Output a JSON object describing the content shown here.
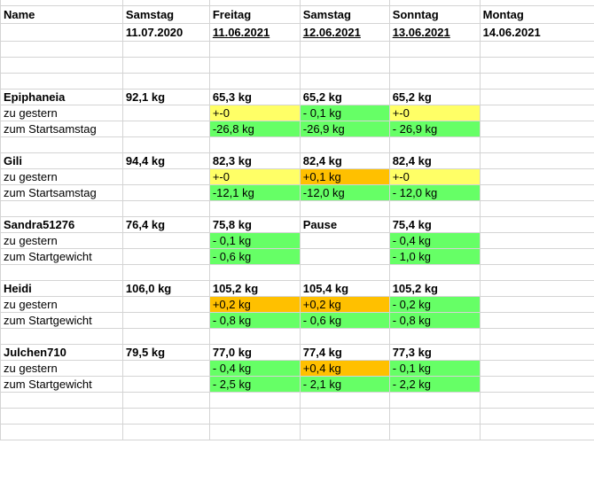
{
  "colors": {
    "yellow": "#ffff66",
    "orange": "#ffc000",
    "green": "#66ff66",
    "gridline": "#d4d4d4"
  },
  "rows": [
    {
      "top": true,
      "cells": [
        {
          "text": ""
        },
        {
          "text": ""
        },
        {
          "text": ""
        },
        {
          "text": ""
        },
        {
          "text": ""
        },
        {
          "text": ""
        }
      ]
    },
    {
      "cells": [
        {
          "text": "Name",
          "bold": true
        },
        {
          "text": "Samstag",
          "bold": true
        },
        {
          "text": "Freitag",
          "bold": true
        },
        {
          "text": "Samstag",
          "bold": true
        },
        {
          "text": "Sonntag",
          "bold": true
        },
        {
          "text": "Montag",
          "bold": true
        }
      ]
    },
    {
      "cells": [
        {
          "text": ""
        },
        {
          "text": "11.07.2020",
          "bold": true
        },
        {
          "text": "11.06.2021",
          "bold": true,
          "underline": true
        },
        {
          "text": "12.06.2021",
          "bold": true,
          "underline": true
        },
        {
          "text": "13.06.2021",
          "bold": true,
          "underline": true
        },
        {
          "text": "14.06.2021",
          "bold": true
        }
      ]
    },
    {
      "cells": [
        {
          "text": ""
        },
        {
          "text": ""
        },
        {
          "text": ""
        },
        {
          "text": ""
        },
        {
          "text": ""
        },
        {
          "text": ""
        }
      ]
    },
    {
      "cells": [
        {
          "text": ""
        },
        {
          "text": ""
        },
        {
          "text": ""
        },
        {
          "text": ""
        },
        {
          "text": ""
        },
        {
          "text": ""
        }
      ]
    },
    {
      "cells": [
        {
          "text": ""
        },
        {
          "text": ""
        },
        {
          "text": ""
        },
        {
          "text": ""
        },
        {
          "text": ""
        },
        {
          "text": ""
        }
      ]
    },
    {
      "cells": [
        {
          "text": "Epiphaneia",
          "bold": true
        },
        {
          "text": "92,1 kg",
          "bold": true
        },
        {
          "text": "65,3 kg",
          "bold": true
        },
        {
          "text": "65,2 kg",
          "bold": true
        },
        {
          "text": "65,2 kg",
          "bold": true
        },
        {
          "text": ""
        }
      ]
    },
    {
      "cells": [
        {
          "text": "zu gestern"
        },
        {
          "text": ""
        },
        {
          "text": "+-0",
          "bg": "yellow"
        },
        {
          "text": "- 0,1 kg",
          "bg": "green"
        },
        {
          "text": "+-0",
          "bg": "yellow"
        },
        {
          "text": ""
        }
      ]
    },
    {
      "cells": [
        {
          "text": "zum Startsamstag"
        },
        {
          "text": ""
        },
        {
          "text": "-26,8 kg",
          "bg": "green"
        },
        {
          "text": "-26,9 kg",
          "bg": "green"
        },
        {
          "text": "- 26,9 kg",
          "bg": "green"
        },
        {
          "text": ""
        }
      ]
    },
    {
      "cells": [
        {
          "text": ""
        },
        {
          "text": ""
        },
        {
          "text": ""
        },
        {
          "text": ""
        },
        {
          "text": ""
        },
        {
          "text": ""
        }
      ]
    },
    {
      "cells": [
        {
          "text": "Gili",
          "bold": true
        },
        {
          "text": "94,4 kg",
          "bold": true
        },
        {
          "text": "82,3 kg",
          "bold": true
        },
        {
          "text": "82,4 kg",
          "bold": true
        },
        {
          "text": "82,4 kg",
          "bold": true
        },
        {
          "text": ""
        }
      ]
    },
    {
      "cells": [
        {
          "text": "zu gestern"
        },
        {
          "text": ""
        },
        {
          "text": "+-0",
          "bg": "yellow"
        },
        {
          "text": "+0,1 kg",
          "bg": "orange"
        },
        {
          "text": "+-0",
          "bg": "yellow"
        },
        {
          "text": ""
        }
      ]
    },
    {
      "cells": [
        {
          "text": "zum Startsamstag"
        },
        {
          "text": ""
        },
        {
          "text": "-12,1 kg",
          "bg": "green"
        },
        {
          "text": "-12,0 kg",
          "bg": "green"
        },
        {
          "text": "- 12,0 kg",
          "bg": "green"
        },
        {
          "text": ""
        }
      ]
    },
    {
      "cells": [
        {
          "text": ""
        },
        {
          "text": ""
        },
        {
          "text": ""
        },
        {
          "text": ""
        },
        {
          "text": ""
        },
        {
          "text": ""
        }
      ]
    },
    {
      "cells": [
        {
          "text": "Sandra51276",
          "bold": true
        },
        {
          "text": "76,4 kg",
          "bold": true
        },
        {
          "text": "75,8 kg",
          "bold": true
        },
        {
          "text": "Pause",
          "bold": true
        },
        {
          "text": "75,4 kg",
          "bold": true
        },
        {
          "text": ""
        }
      ]
    },
    {
      "cells": [
        {
          "text": "zu gestern"
        },
        {
          "text": ""
        },
        {
          "text": "- 0,1 kg",
          "bg": "green"
        },
        {
          "text": ""
        },
        {
          "text": "- 0,4 kg",
          "bg": "green"
        },
        {
          "text": ""
        }
      ]
    },
    {
      "cells": [
        {
          "text": "zum Startgewicht"
        },
        {
          "text": ""
        },
        {
          "text": "- 0,6 kg",
          "bg": "green"
        },
        {
          "text": ""
        },
        {
          "text": "- 1,0 kg",
          "bg": "green"
        },
        {
          "text": ""
        }
      ]
    },
    {
      "cells": [
        {
          "text": ""
        },
        {
          "text": ""
        },
        {
          "text": ""
        },
        {
          "text": ""
        },
        {
          "text": ""
        },
        {
          "text": ""
        }
      ]
    },
    {
      "cells": [
        {
          "text": "Heidi",
          "bold": true
        },
        {
          "text": "106,0 kg",
          "bold": true
        },
        {
          "text": "105,2  kg",
          "bold": true
        },
        {
          "text": "105,4 kg",
          "bold": true
        },
        {
          "text": "105,2 kg",
          "bold": true
        },
        {
          "text": ""
        }
      ]
    },
    {
      "cells": [
        {
          "text": "zu gestern"
        },
        {
          "text": ""
        },
        {
          "text": "+0,2 kg",
          "bg": "orange"
        },
        {
          "text": "+0,2 kg",
          "bg": "orange"
        },
        {
          "text": "  - 0,2 kg",
          "bg": "green"
        },
        {
          "text": ""
        }
      ]
    },
    {
      "cells": [
        {
          "text": "zum Startgewicht"
        },
        {
          "text": ""
        },
        {
          "text": "- 0,8 kg",
          "bg": "green"
        },
        {
          "text": "- 0,6 kg",
          "bg": "green"
        },
        {
          "text": "  - 0,8 kg",
          "bg": "green"
        },
        {
          "text": ""
        }
      ]
    },
    {
      "cells": [
        {
          "text": ""
        },
        {
          "text": ""
        },
        {
          "text": ""
        },
        {
          "text": ""
        },
        {
          "text": ""
        },
        {
          "text": ""
        }
      ]
    },
    {
      "cells": [
        {
          "text": "Julchen710",
          "bold": true
        },
        {
          "text": "79,5 kg",
          "bold": true
        },
        {
          "text": "77,0 kg",
          "bold": true
        },
        {
          "text": "77,4 kg",
          "bold": true
        },
        {
          "text": "77,3 kg",
          "bold": true
        },
        {
          "text": ""
        }
      ]
    },
    {
      "cells": [
        {
          "text": "zu gestern"
        },
        {
          "text": ""
        },
        {
          "text": "- 0,4 kg",
          "bg": "green"
        },
        {
          "text": "+0,4 kg",
          "bg": "orange"
        },
        {
          "text": "- 0,1 kg",
          "bg": "green"
        },
        {
          "text": ""
        }
      ]
    },
    {
      "cells": [
        {
          "text": "zum Startgewicht"
        },
        {
          "text": ""
        },
        {
          "text": "- 2,5 kg",
          "bg": "green"
        },
        {
          "text": "- 2,1 kg",
          "bg": "green"
        },
        {
          "text": "- 2,2 kg",
          "bg": "green"
        },
        {
          "text": ""
        }
      ]
    },
    {
      "cells": [
        {
          "text": ""
        },
        {
          "text": ""
        },
        {
          "text": ""
        },
        {
          "text": ""
        },
        {
          "text": ""
        },
        {
          "text": ""
        }
      ]
    },
    {
      "cells": [
        {
          "text": ""
        },
        {
          "text": ""
        },
        {
          "text": ""
        },
        {
          "text": ""
        },
        {
          "text": ""
        },
        {
          "text": ""
        }
      ]
    },
    {
      "cells": [
        {
          "text": ""
        },
        {
          "text": ""
        },
        {
          "text": ""
        },
        {
          "text": ""
        },
        {
          "text": ""
        },
        {
          "text": ""
        }
      ]
    }
  ]
}
